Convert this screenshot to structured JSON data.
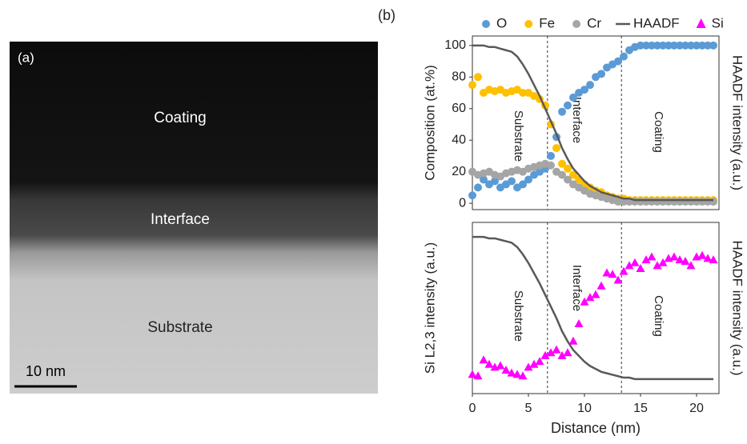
{
  "panel_a": {
    "label": "(a)",
    "regions": [
      "Coating",
      "Interface",
      "Substrate"
    ],
    "scale_bar": "10 nm"
  },
  "panel_b": {
    "label": "(b)"
  },
  "chart_data": [
    {
      "type": "scatter",
      "ylabel": "Composition (at.%)",
      "y2label": "HAADF intensity (a.u.)",
      "annotations": [
        "Substrate",
        "Interface",
        "Coating"
      ],
      "vlines": [
        6.7,
        13.3
      ],
      "xlim": [
        0,
        22
      ],
      "ylim": [
        -4,
        106
      ],
      "yticks": [
        0,
        20,
        40,
        60,
        80,
        100
      ],
      "x": [
        0,
        0.5,
        1,
        1.5,
        2,
        2.5,
        3,
        3.5,
        4,
        4.5,
        5,
        5.5,
        6,
        6.5,
        7,
        7.5,
        8,
        8.5,
        9,
        9.5,
        10,
        10.5,
        11,
        11.5,
        12,
        12.5,
        13,
        13.5,
        14,
        14.5,
        15,
        15.5,
        16,
        16.5,
        17,
        17.5,
        18,
        18.5,
        19,
        19.5,
        20,
        20.5,
        21,
        21.5
      ],
      "series": [
        {
          "name": "O",
          "color": "#5b9bd5",
          "marker": "circle",
          "values": [
            5,
            10,
            15,
            12,
            14,
            10,
            12,
            14,
            10,
            12,
            15,
            18,
            20,
            22,
            30,
            42,
            58,
            62,
            67,
            70,
            72,
            75,
            80,
            82,
            86,
            88,
            90,
            93,
            97,
            99,
            100,
            100,
            100,
            100,
            100,
            100,
            100,
            100,
            100,
            100,
            100,
            100,
            100,
            100
          ]
        },
        {
          "name": "Fe",
          "color": "#ffc000",
          "marker": "circle",
          "values": [
            75,
            80,
            70,
            72,
            71,
            72,
            70,
            71,
            72,
            70,
            70,
            68,
            66,
            62,
            50,
            35,
            25,
            22,
            18,
            15,
            12,
            10,
            8,
            7,
            5,
            4,
            3,
            3,
            2,
            2,
            2,
            2,
            2,
            2,
            2,
            2,
            2,
            2,
            2,
            2,
            2,
            2,
            2,
            2
          ]
        },
        {
          "name": "Cr",
          "color": "#a5a5a5",
          "marker": "circle",
          "values": [
            20,
            18,
            19,
            20,
            18,
            17,
            19,
            20,
            21,
            20,
            22,
            23,
            24,
            25,
            24,
            20,
            18,
            15,
            12,
            10,
            8,
            6,
            5,
            4,
            3,
            2,
            1,
            1,
            1,
            1,
            1,
            1,
            1,
            1,
            1,
            1,
            1,
            1,
            1,
            1,
            1,
            1,
            1,
            1
          ]
        },
        {
          "name": "HAADF",
          "color": "#595959",
          "marker": "line",
          "values": [
            100,
            100,
            100,
            99,
            99,
            98,
            97,
            96,
            93,
            88,
            82,
            75,
            68,
            60,
            52,
            44,
            35,
            28,
            22,
            18,
            14,
            11,
            9,
            7,
            6,
            5,
            4,
            3,
            3,
            2,
            2,
            2,
            2,
            2,
            2,
            2,
            2,
            2,
            2,
            2,
            2,
            2,
            2,
            2
          ]
        }
      ]
    },
    {
      "type": "scatter",
      "ylabel": "Si L2,3 intensity (a.u.)",
      "y2label": "HAADF intensity (a.u.)",
      "xlabel": "Distance (nm)",
      "annotations": [
        "Substrate",
        "Interface",
        "Coating"
      ],
      "vlines": [
        6.7,
        13.3
      ],
      "xlim": [
        0,
        22
      ],
      "xticks": [
        0,
        5,
        10,
        15,
        20
      ],
      "ylim": [
        -8,
        110
      ],
      "x": [
        0,
        0.5,
        1,
        1.5,
        2,
        2.5,
        3,
        3.5,
        4,
        4.5,
        5,
        5.5,
        6,
        6.5,
        7,
        7.5,
        8,
        8.5,
        9,
        9.5,
        10,
        10.5,
        11,
        11.5,
        12,
        12.5,
        13,
        13.5,
        14,
        14.5,
        15,
        15.5,
        16,
        16.5,
        17,
        17.5,
        18,
        18.5,
        19,
        19.5,
        20,
        20.5,
        21,
        21.5
      ],
      "series": [
        {
          "color": "#595959",
          "marker": "line",
          "values": [
            100,
            100,
            100,
            99,
            99,
            98,
            97,
            96,
            93,
            88,
            82,
            75,
            68,
            60,
            52,
            44,
            35,
            28,
            22,
            18,
            14,
            11,
            9,
            7,
            6,
            5,
            4,
            3,
            3,
            2,
            2,
            2,
            2,
            2,
            2,
            2,
            2,
            2,
            2,
            2,
            2,
            2,
            2,
            2
          ]
        },
        {
          "name": "Si",
          "color": "#ff00ff",
          "marker": "triangle",
          "values": [
            5,
            4,
            15,
            12,
            10,
            11,
            8,
            6,
            5,
            4,
            10,
            12,
            14,
            18,
            20,
            22,
            18,
            20,
            28,
            40,
            55,
            58,
            60,
            66,
            75,
            74,
            70,
            76,
            80,
            82,
            78,
            84,
            86,
            80,
            82,
            85,
            86,
            84,
            83,
            80,
            86,
            87,
            85,
            84
          ]
        }
      ]
    }
  ]
}
